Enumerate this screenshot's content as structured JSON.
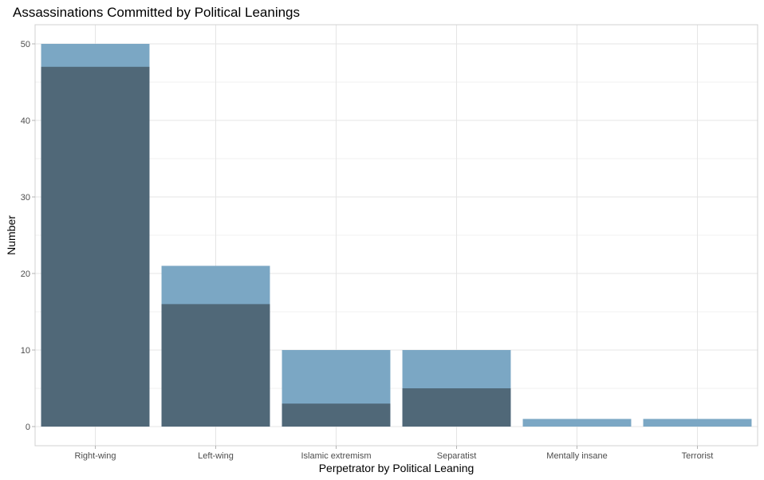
{
  "chart_data": {
    "type": "bar",
    "stacked": false,
    "overlay": true,
    "title": "Assassinations Committed by Political Leanings",
    "xlabel": "Perpetrator by Political Leaning",
    "ylabel": "Number",
    "categories": [
      "Right-wing",
      "Left-wing",
      "Islamic extremism",
      "Separatist",
      "Mentally insane",
      "Terrorist"
    ],
    "ylim": [
      0,
      52
    ],
    "yticks": [
      0,
      10,
      20,
      30,
      40,
      50
    ],
    "grid": true,
    "series": [
      {
        "values": [
          50,
          21,
          10,
          10,
          1,
          1
        ],
        "color": "#7ba7c4"
      },
      {
        "values": [
          47,
          16,
          3,
          5,
          0,
          0
        ],
        "color": "#506878"
      }
    ]
  }
}
